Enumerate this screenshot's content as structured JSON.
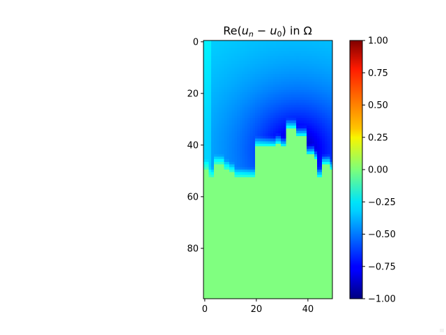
{
  "chart_data": {
    "type": "heatmap",
    "title": "Re(u_n − u_0) in Ω",
    "title_parts": {
      "prefix": "Re(",
      "u": "u",
      "n_sub": "n",
      "minus": " − ",
      "zero_sub": "0",
      "suffix": ") in Ω"
    },
    "xlabel": "",
    "ylabel": "",
    "x_range": [
      0,
      49
    ],
    "y_range": [
      0,
      99
    ],
    "y_inverted": true,
    "x_ticks": [
      0,
      20,
      40
    ],
    "x_tick_labels": [
      "0",
      "20",
      "40"
    ],
    "y_ticks": [
      0,
      20,
      40,
      60,
      80
    ],
    "y_tick_labels": [
      "0",
      "20",
      "40",
      "60",
      "80"
    ],
    "colormap": "jet",
    "vmin": -1.0,
    "vmax": 1.0,
    "colorbar_ticks": [
      1.0,
      0.75,
      0.5,
      0.25,
      0.0,
      -0.25,
      -0.5,
      -0.75,
      -1.0
    ],
    "colorbar_tick_labels": [
      "1.00",
      "0.75",
      "0.50",
      "0.25",
      "0.00",
      "−0.25",
      "−0.50",
      "−0.75",
      "−1.00"
    ],
    "field": {
      "description_of_values": "Re(u_n - u_0): ~ -0.3 near top, decreasing to ~ -1.0 around column 36 row 42; ~0.0 inside the rough-bottom obstacle and below",
      "top_value": -0.3,
      "min_value": -1.0,
      "min_location": [
        36,
        42
      ],
      "background_value": 0.0,
      "boundary_profile": [
        50,
        50,
        53,
        53,
        48,
        48,
        48,
        48,
        50,
        50,
        51,
        51,
        53,
        53,
        53,
        53,
        53,
        53,
        53,
        53,
        41,
        41,
        41,
        41,
        41,
        41,
        41,
        41,
        40,
        40,
        41,
        41,
        34,
        34,
        34,
        34,
        37,
        37,
        37,
        37,
        44,
        44,
        44,
        46,
        53,
        53,
        48,
        48,
        48,
        50
      ]
    }
  }
}
